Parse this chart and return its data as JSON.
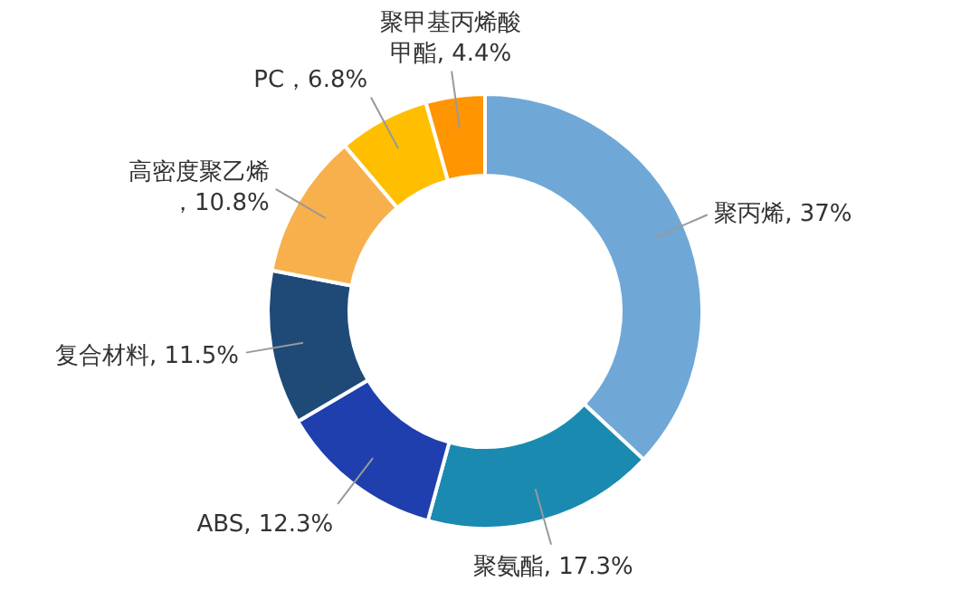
{
  "chart_data": {
    "type": "donut",
    "categories": [
      "聚丙烯",
      "聚氨酯",
      "ABS",
      "复合材料",
      "高密度聚乙烯",
      "PC",
      "聚甲基丙烯酸甲酯"
    ],
    "values": [
      37,
      17.3,
      12.3,
      11.5,
      10.8,
      6.8,
      4.4
    ],
    "colors": [
      "#6fa8d6",
      "#1a8ab0",
      "#1f3fae",
      "#1f4a78",
      "#f7b04c",
      "#ffbf00",
      "#ff9500"
    ],
    "value_labels": [
      ", 37%",
      ", 17.3%",
      ", 12.3%",
      ", 11.5%",
      "，10.8%",
      "，6.8%",
      ", 4.4%"
    ]
  }
}
